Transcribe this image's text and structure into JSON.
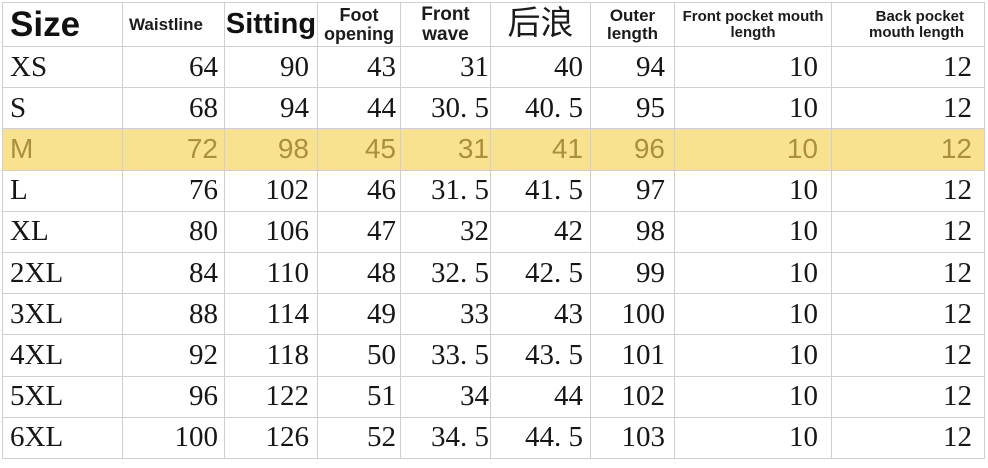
{
  "colors": {
    "background": "#ffffff",
    "grid_line": "#cfcfcf",
    "text": "#161616",
    "highlight_row_background": "#f9e28f",
    "highlight_row_text": "#ab8f3d"
  },
  "table": {
    "columns": [
      {
        "key": "size",
        "label": "Size"
      },
      {
        "key": "waistline",
        "label": "Waistline"
      },
      {
        "key": "sitting",
        "label": "Sitting"
      },
      {
        "key": "foot-opening",
        "label": "Foot opening"
      },
      {
        "key": "front-wave",
        "label": "Front wave"
      },
      {
        "key": "back-wave",
        "label": "后浪"
      },
      {
        "key": "outer-length",
        "label": "Outer length"
      },
      {
        "key": "front-pocket-mouth-length",
        "label": "Front pocket mouth length"
      },
      {
        "key": "back-pocket-mouth-length",
        "label": "Back pocket mouth length"
      }
    ],
    "highlighted_row_index": 2,
    "rows": [
      [
        "XS",
        "64",
        "90",
        "43",
        "31",
        "40",
        "94",
        "10",
        "12"
      ],
      [
        "S",
        "68",
        "94",
        "44",
        "30. 5",
        "40. 5",
        "95",
        "10",
        "12"
      ],
      [
        "M",
        "72",
        "98",
        "45",
        "31",
        "41",
        "96",
        "10",
        "12"
      ],
      [
        "L",
        "76",
        "102",
        "46",
        "31. 5",
        "41. 5",
        "97",
        "10",
        "12"
      ],
      [
        "XL",
        "80",
        "106",
        "47",
        "32",
        "42",
        "98",
        "10",
        "12"
      ],
      [
        "2XL",
        "84",
        "110",
        "48",
        "32. 5",
        "42. 5",
        "99",
        "10",
        "12"
      ],
      [
        "3XL",
        "88",
        "114",
        "49",
        "33",
        "43",
        "100",
        "10",
        "12"
      ],
      [
        "4XL",
        "92",
        "118",
        "50",
        "33. 5",
        "43. 5",
        "101",
        "10",
        "12"
      ],
      [
        "5XL",
        "96",
        "122",
        "51",
        "34",
        "44",
        "102",
        "10",
        "12"
      ],
      [
        "6XL",
        "100",
        "126",
        "52",
        "34. 5",
        "44. 5",
        "103",
        "10",
        "12"
      ]
    ]
  },
  "chart_data": {
    "type": "table",
    "columns": [
      "Size",
      "Waistline",
      "Sitting",
      "Foot opening",
      "Front wave",
      "后浪",
      "Outer length",
      "Front pocket mouth length",
      "Back pocket mouth length"
    ],
    "rows": [
      [
        "XS",
        64,
        90,
        43,
        31,
        40,
        94,
        10,
        12
      ],
      [
        "S",
        68,
        94,
        44,
        30.5,
        40.5,
        95,
        10,
        12
      ],
      [
        "M",
        72,
        98,
        45,
        31,
        41,
        96,
        10,
        12
      ],
      [
        "L",
        76,
        102,
        46,
        31.5,
        41.5,
        97,
        10,
        12
      ],
      [
        "XL",
        80,
        106,
        47,
        32,
        42,
        98,
        10,
        12
      ],
      [
        "2XL",
        84,
        110,
        48,
        32.5,
        42.5,
        99,
        10,
        12
      ],
      [
        "3XL",
        88,
        114,
        49,
        33,
        43,
        100,
        10,
        12
      ],
      [
        "4XL",
        92,
        118,
        50,
        33.5,
        43.5,
        101,
        10,
        12
      ],
      [
        "5XL",
        96,
        122,
        51,
        34,
        44,
        102,
        10,
        12
      ],
      [
        "6XL",
        100,
        126,
        52,
        34.5,
        44.5,
        103,
        10,
        12
      ]
    ],
    "highlighted_row": "M",
    "legend_position": "none",
    "grid": true
  }
}
